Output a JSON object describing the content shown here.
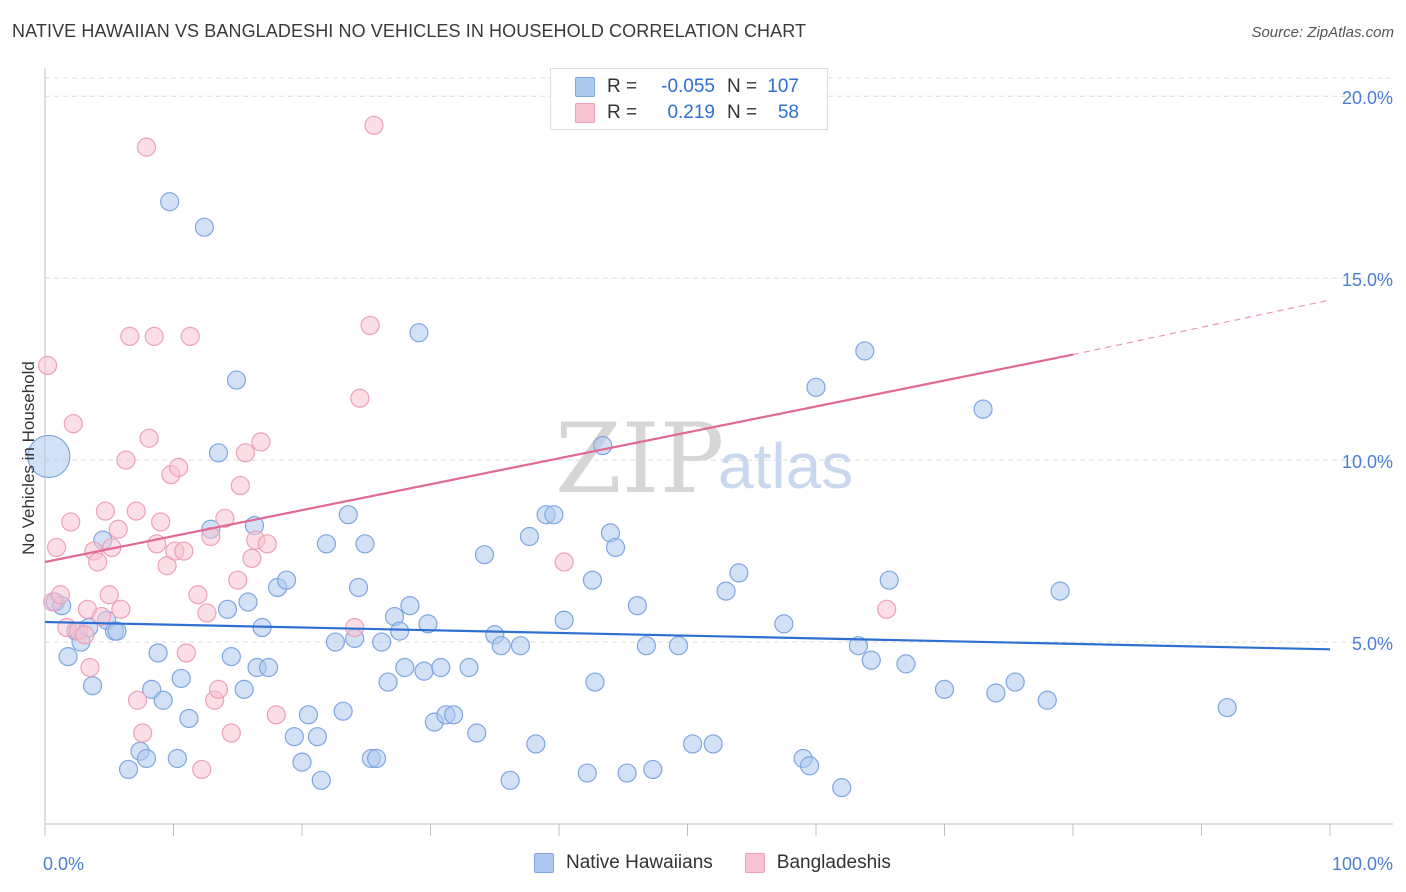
{
  "title": "NATIVE HAWAIIAN VS BANGLADESHI NO VEHICLES IN HOUSEHOLD CORRELATION CHART",
  "source": "Source: ZipAtlas.com",
  "watermark": {
    "zip": "ZIP",
    "atlas": "atlas"
  },
  "colors": {
    "blue_fill": "#aec9f0",
    "blue_stroke": "#7fa6e0",
    "blue_line": "#2f6fd1",
    "pink_fill": "#f7c3d2",
    "pink_stroke": "#eea0b8",
    "pink_line": "#e06a93",
    "grid": "#dcdcdc",
    "tick_text": "#4a7fd4"
  },
  "legend": {
    "rows": [
      {
        "r_label": "R =",
        "r_value": "-0.055",
        "n_label": "N =",
        "n_value": "107"
      },
      {
        "r_label": "R =",
        "r_value": "0.219",
        "n_label": "N =",
        "n_value": "58"
      }
    ]
  },
  "bottom_legend": {
    "series1": "Native Hawaiians",
    "series2": "Bangladeshis"
  },
  "chart_data": {
    "type": "scatter",
    "title": "NATIVE HAWAIIAN VS BANGLADESHI NO VEHICLES IN HOUSEHOLD CORRELATION CHART",
    "xlabel": "",
    "ylabel": "No Vehicles in Household",
    "xlim": [
      0,
      100
    ],
    "ylim": [
      0,
      20.5
    ],
    "x_tick_labels": [
      "0.0%",
      "100.0%"
    ],
    "y_ticks": [
      5,
      10,
      15,
      20
    ],
    "y_tick_labels": [
      "5.0%",
      "10.0%",
      "15.0%",
      "20.0%"
    ],
    "series": [
      {
        "name": "Native Hawaiians",
        "r": -0.055,
        "n": 107,
        "trend": {
          "x0": 0,
          "y0": 5.55,
          "x1": 100,
          "y1": 4.8
        },
        "points": [
          [
            0.3,
            10.1
          ],
          [
            0.8,
            6.1
          ],
          [
            1.3,
            6.0
          ],
          [
            1.8,
            4.6
          ],
          [
            2.4,
            5.3
          ],
          [
            2.8,
            5.0
          ],
          [
            3.4,
            5.4
          ],
          [
            3.7,
            3.8
          ],
          [
            4.5,
            7.8
          ],
          [
            4.8,
            5.6
          ],
          [
            5.4,
            5.3
          ],
          [
            5.6,
            5.3
          ],
          [
            6.5,
            1.5
          ],
          [
            7.4,
            2.0
          ],
          [
            7.9,
            1.8
          ],
          [
            8.3,
            3.7
          ],
          [
            8.8,
            4.7
          ],
          [
            9.2,
            3.4
          ],
          [
            9.7,
            17.1
          ],
          [
            10.3,
            1.8
          ],
          [
            10.6,
            4.0
          ],
          [
            11.2,
            2.9
          ],
          [
            12.4,
            16.4
          ],
          [
            12.9,
            8.1
          ],
          [
            13.5,
            10.2
          ],
          [
            14.2,
            5.9
          ],
          [
            14.5,
            4.6
          ],
          [
            14.9,
            12.2
          ],
          [
            15.5,
            3.7
          ],
          [
            15.8,
            6.1
          ],
          [
            16.3,
            8.2
          ],
          [
            16.5,
            4.3
          ],
          [
            16.9,
            5.4
          ],
          [
            17.4,
            4.3
          ],
          [
            18.1,
            6.5
          ],
          [
            18.8,
            6.7
          ],
          [
            19.4,
            2.4
          ],
          [
            20.0,
            1.7
          ],
          [
            20.5,
            3.0
          ],
          [
            21.2,
            2.4
          ],
          [
            21.5,
            1.2
          ],
          [
            21.9,
            7.7
          ],
          [
            22.6,
            5.0
          ],
          [
            23.2,
            3.1
          ],
          [
            23.6,
            8.5
          ],
          [
            24.1,
            5.1
          ],
          [
            24.4,
            6.5
          ],
          [
            24.9,
            7.7
          ],
          [
            25.4,
            1.8
          ],
          [
            25.8,
            1.8
          ],
          [
            26.2,
            5.0
          ],
          [
            26.7,
            3.9
          ],
          [
            27.2,
            5.7
          ],
          [
            27.6,
            5.3
          ],
          [
            28.0,
            4.3
          ],
          [
            28.4,
            6.0
          ],
          [
            29.1,
            13.5
          ],
          [
            29.5,
            4.2
          ],
          [
            29.8,
            5.5
          ],
          [
            30.3,
            2.8
          ],
          [
            30.8,
            4.3
          ],
          [
            31.2,
            3.0
          ],
          [
            31.8,
            3.0
          ],
          [
            33.0,
            4.3
          ],
          [
            33.6,
            2.5
          ],
          [
            34.2,
            7.4
          ],
          [
            35.0,
            5.2
          ],
          [
            35.5,
            4.9
          ],
          [
            36.2,
            1.2
          ],
          [
            37.0,
            4.9
          ],
          [
            37.7,
            7.9
          ],
          [
            38.2,
            2.2
          ],
          [
            39.0,
            8.5
          ],
          [
            39.6,
            8.5
          ],
          [
            40.4,
            5.6
          ],
          [
            42.2,
            1.4
          ],
          [
            42.6,
            6.7
          ],
          [
            42.8,
            3.9
          ],
          [
            43.4,
            10.4
          ],
          [
            44.0,
            8.0
          ],
          [
            44.4,
            7.6
          ],
          [
            45.3,
            1.4
          ],
          [
            46.1,
            6.0
          ],
          [
            46.8,
            4.9
          ],
          [
            47.3,
            1.5
          ],
          [
            49.3,
            4.9
          ],
          [
            50.4,
            2.2
          ],
          [
            52.0,
            2.2
          ],
          [
            53.0,
            6.4
          ],
          [
            54.0,
            6.9
          ],
          [
            57.5,
            5.5
          ],
          [
            59.0,
            1.8
          ],
          [
            59.5,
            1.6
          ],
          [
            60.0,
            12.0
          ],
          [
            62.0,
            1.0
          ],
          [
            63.3,
            4.9
          ],
          [
            63.8,
            13.0
          ],
          [
            64.3,
            4.5
          ],
          [
            65.7,
            6.7
          ],
          [
            67.0,
            4.4
          ],
          [
            70.0,
            3.7
          ],
          [
            73.0,
            11.4
          ],
          [
            74.0,
            3.6
          ],
          [
            75.5,
            3.9
          ],
          [
            78.0,
            3.4
          ],
          [
            79.0,
            6.4
          ],
          [
            92.0,
            3.2
          ]
        ]
      },
      {
        "name": "Bangladeshis",
        "r": 0.219,
        "n": 58,
        "trend": {
          "x0": 0,
          "y0": 7.2,
          "x1": 80,
          "y1": 12.9,
          "dashed_to_x": 100,
          "dashed_to_y": 14.4
        },
        "points": [
          [
            0.2,
            12.6
          ],
          [
            0.6,
            6.1
          ],
          [
            0.9,
            7.6
          ],
          [
            1.2,
            6.3
          ],
          [
            1.7,
            5.4
          ],
          [
            2.0,
            8.3
          ],
          [
            2.2,
            11.0
          ],
          [
            2.6,
            5.3
          ],
          [
            3.1,
            5.2
          ],
          [
            3.3,
            5.9
          ],
          [
            3.5,
            4.3
          ],
          [
            3.8,
            7.5
          ],
          [
            4.1,
            7.2
          ],
          [
            4.4,
            5.7
          ],
          [
            4.7,
            8.6
          ],
          [
            5.0,
            6.3
          ],
          [
            5.2,
            7.6
          ],
          [
            5.7,
            8.1
          ],
          [
            5.9,
            5.9
          ],
          [
            6.3,
            10.0
          ],
          [
            6.6,
            13.4
          ],
          [
            7.1,
            8.6
          ],
          [
            7.2,
            3.4
          ],
          [
            7.6,
            2.5
          ],
          [
            7.9,
            18.6
          ],
          [
            8.1,
            10.6
          ],
          [
            8.5,
            13.4
          ],
          [
            8.7,
            7.7
          ],
          [
            9.0,
            8.3
          ],
          [
            9.5,
            7.1
          ],
          [
            9.8,
            9.6
          ],
          [
            10.1,
            7.5
          ],
          [
            10.4,
            9.8
          ],
          [
            10.8,
            7.5
          ],
          [
            11.0,
            4.7
          ],
          [
            11.3,
            13.4
          ],
          [
            11.9,
            6.3
          ],
          [
            12.2,
            1.5
          ],
          [
            12.6,
            5.8
          ],
          [
            12.9,
            7.9
          ],
          [
            13.2,
            3.4
          ],
          [
            13.5,
            3.7
          ],
          [
            14.0,
            8.4
          ],
          [
            14.5,
            2.5
          ],
          [
            15.0,
            6.7
          ],
          [
            15.2,
            9.3
          ],
          [
            15.6,
            10.2
          ],
          [
            16.1,
            7.3
          ],
          [
            16.4,
            7.8
          ],
          [
            16.8,
            10.5
          ],
          [
            17.3,
            7.7
          ],
          [
            18.0,
            3.0
          ],
          [
            24.1,
            5.4
          ],
          [
            24.5,
            11.7
          ],
          [
            25.3,
            13.7
          ],
          [
            25.6,
            19.2
          ],
          [
            40.4,
            7.2
          ],
          [
            65.5,
            5.9
          ]
        ]
      }
    ]
  }
}
